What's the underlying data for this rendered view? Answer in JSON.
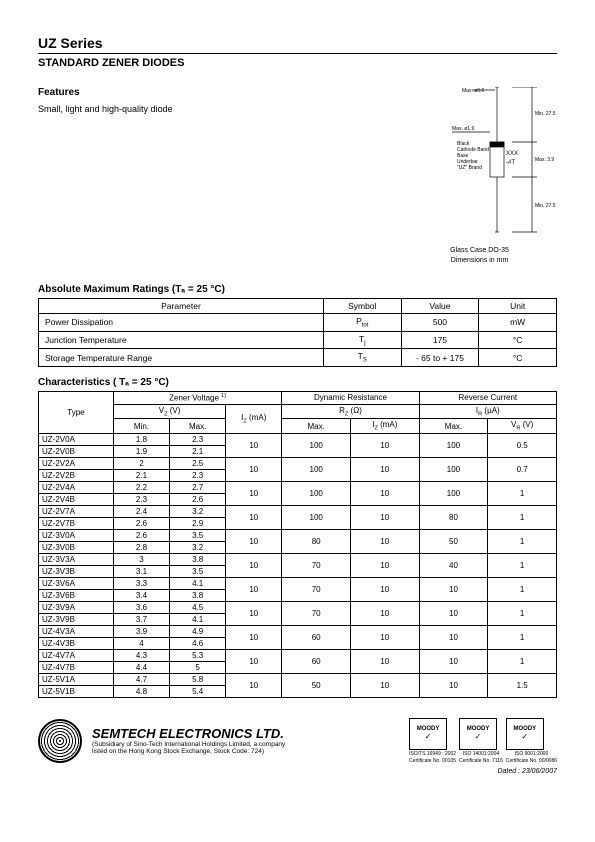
{
  "series_title": "UZ Series",
  "subtitle": "STANDARD ZENER DIODES",
  "features_heading": "Features",
  "features_text": "Small, light and high-quality diode",
  "diagram": {
    "caption_line1": "Glass Case DO-35",
    "caption_line2": "Dimensions in mm",
    "annotations": {
      "top_width": "Max. ø0.6",
      "body_width": "Max. ø1.9",
      "min27a": "Min. 27.5",
      "min27b": "Min. 27.5",
      "body_len": "Max. 3.9",
      "mark1": "XXX",
      "mark2": "-#T",
      "layer1": "Black",
      "layer2": "Cathode Band",
      "layer3": "Base",
      "layer4": "Underbar",
      "layer5": "\"UZ\" Brand"
    },
    "colors": {
      "stroke": "#000000",
      "fill": "#ffffff",
      "text": "#000000"
    },
    "line_width": 0.7,
    "font_size": 5
  },
  "ratings": {
    "heading": "Absolute Maximum Ratings (Tₐ = 25 °C)",
    "columns": [
      "Parameter",
      "Symbol",
      "Value",
      "Unit"
    ],
    "rows": [
      [
        "Power Dissipation",
        "Ptot",
        "500",
        "mW"
      ],
      [
        "Junction Temperature",
        "Tj",
        "175",
        "°C"
      ],
      [
        "Storage Temperature Range",
        "TS",
        "- 65 to + 175",
        "°C"
      ]
    ],
    "col_widths": [
      "55%",
      "15%",
      "15%",
      "15%"
    ]
  },
  "characteristics": {
    "heading": "Characteristics ( Tₐ = 25 °C)",
    "header_row1": [
      "Type",
      "Zener Voltage 1)",
      "Dynamic Resistance",
      "Reverse Current"
    ],
    "header_row2": [
      "VZ (V)",
      "",
      "RZ (Ω)",
      "",
      "IR (µA)",
      ""
    ],
    "header_row3": [
      "Min.",
      "Max.",
      "IZ (mA)",
      "Max.",
      "IZ (mA)",
      "Max.",
      "VR (V)"
    ],
    "rows": [
      {
        "type": "UZ-2V0A",
        "min": "1.8",
        "max": "2.3",
        "iz": "10",
        "rz": "100",
        "iz2": "10",
        "ir": "100",
        "vr": "0.5",
        "pair_first": true
      },
      {
        "type": "UZ-2V0B",
        "min": "1.9",
        "max": "2.1"
      },
      {
        "type": "UZ-2V2A",
        "min": "2",
        "max": "2.5",
        "iz": "10",
        "rz": "100",
        "iz2": "10",
        "ir": "100",
        "vr": "0.7",
        "pair_first": true
      },
      {
        "type": "UZ-2V2B",
        "min": "2.1",
        "max": "2.3"
      },
      {
        "type": "UZ-2V4A",
        "min": "2.2",
        "max": "2.7",
        "iz": "10",
        "rz": "100",
        "iz2": "10",
        "ir": "100",
        "vr": "1",
        "pair_first": true
      },
      {
        "type": "UZ-2V4B",
        "min": "2.3",
        "max": "2.6"
      },
      {
        "type": "UZ-2V7A",
        "min": "2.4",
        "max": "3.2",
        "iz": "10",
        "rz": "100",
        "iz2": "10",
        "ir": "80",
        "vr": "1",
        "pair_first": true
      },
      {
        "type": "UZ-2V7B",
        "min": "2.6",
        "max": "2.9"
      },
      {
        "type": "UZ-3V0A",
        "min": "2.6",
        "max": "3.5",
        "iz": "10",
        "rz": "80",
        "iz2": "10",
        "ir": "50",
        "vr": "1",
        "pair_first": true
      },
      {
        "type": "UZ-3V0B",
        "min": "2.8",
        "max": "3.2"
      },
      {
        "type": "UZ-3V3A",
        "min": "3",
        "max": "3.8",
        "iz": "10",
        "rz": "70",
        "iz2": "10",
        "ir": "40",
        "vr": "1",
        "pair_first": true
      },
      {
        "type": "UZ-3V3B",
        "min": "3.1",
        "max": "3.5"
      },
      {
        "type": "UZ-3V6A",
        "min": "3.3",
        "max": "4.1",
        "iz": "10",
        "rz": "70",
        "iz2": "10",
        "ir": "10",
        "vr": "1",
        "pair_first": true
      },
      {
        "type": "UZ-3V6B",
        "min": "3.4",
        "max": "3.8"
      },
      {
        "type": "UZ-3V9A",
        "min": "3.6",
        "max": "4.5",
        "iz": "10",
        "rz": "70",
        "iz2": "10",
        "ir": "10",
        "vr": "1",
        "pair_first": true
      },
      {
        "type": "UZ-3V9B",
        "min": "3.7",
        "max": "4.1"
      },
      {
        "type": "UZ-4V3A",
        "min": "3.9",
        "max": "4.9",
        "iz": "10",
        "rz": "60",
        "iz2": "10",
        "ir": "10",
        "vr": "1",
        "pair_first": true
      },
      {
        "type": "UZ-4V3B",
        "min": "4",
        "max": "4.6"
      },
      {
        "type": "UZ-4V7A",
        "min": "4.3",
        "max": "5.3",
        "iz": "10",
        "rz": "60",
        "iz2": "10",
        "ir": "10",
        "vr": "1",
        "pair_first": true
      },
      {
        "type": "UZ-4V7B",
        "min": "4.4",
        "max": "5"
      },
      {
        "type": "UZ-5V1A",
        "min": "4.7",
        "max": "5.8",
        "iz": "10",
        "rz": "50",
        "iz2": "10",
        "ir": "10",
        "vr": "1.5",
        "pair_first": true
      },
      {
        "type": "UZ-5V1B",
        "min": "4.8",
        "max": "5.4"
      }
    ],
    "col_widths": [
      "12%",
      "9%",
      "9%",
      "9%",
      "11%",
      "11%",
      "11%",
      "11%"
    ]
  },
  "footer": {
    "company": "SEMTECH ELECTRONICS LTD.",
    "sub1": "(Subsidiary of Sino-Tech International Holdings Limited, a company",
    "sub2": "listed on the Hong Kong Stock Exchange, Stock Code: 724)",
    "badges": [
      {
        "top": "MOODY",
        "cert": "ISO/TS 16949 : 2002",
        "num": "Certificate No. 00105"
      },
      {
        "top": "MOODY",
        "cert": "ISO 14001:2004",
        "num": "Certificate No. 7116"
      },
      {
        "top": "MOODY",
        "cert": "ISO 9001:2000",
        "num": "Certificate No. 00/0086"
      }
    ],
    "date": "Dated : 23/06/2007"
  }
}
